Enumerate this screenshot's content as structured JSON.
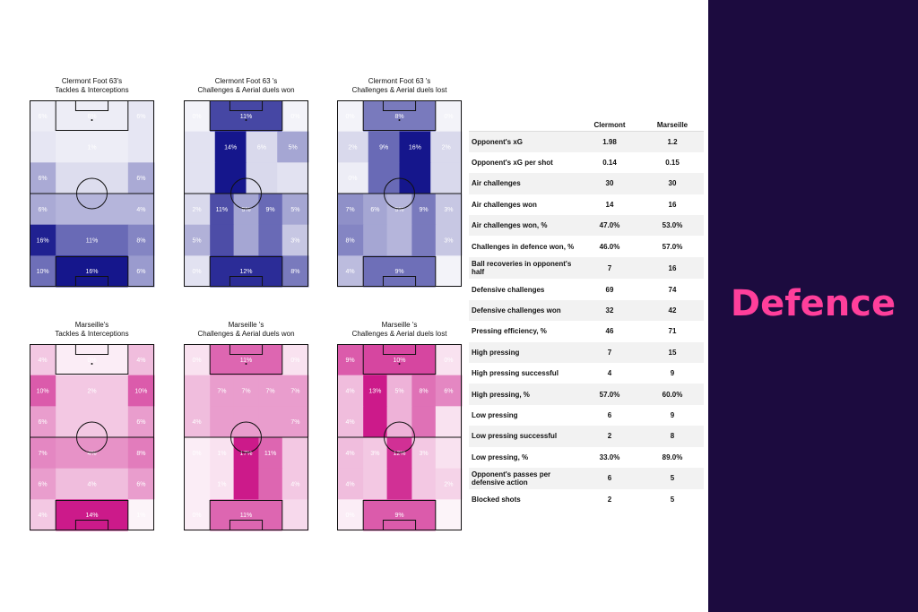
{
  "sidebar": {
    "title": "Defence",
    "bg": "#1c0b3f",
    "title_color": "#ff3f9b"
  },
  "palettes": {
    "clermont": "#15168c",
    "marseille": "#cc1a8a"
  },
  "chart_data": [
    {
      "type": "heatmap",
      "team": "clermont",
      "title": "Clermont Foot 63's\nTackles & Interceptions",
      "rows": [
        [
          {
            "v": 3,
            "t": "6%"
          },
          {
            "v": 3,
            "t": "6%"
          },
          {
            "v": 6,
            "t": "6%"
          }
        ],
        [
          {
            "v": 6,
            "t": ""
          },
          {
            "v": 3,
            "t": "1%"
          },
          {
            "v": 6,
            "t": ""
          }
        ],
        [
          {
            "v": 33,
            "t": "6%"
          },
          {
            "v": 10,
            "t": ""
          },
          {
            "v": 33,
            "t": "6%"
          }
        ],
        [
          {
            "v": 33,
            "t": "6%"
          },
          {
            "v": 28,
            "t": ""
          },
          {
            "v": 28,
            "t": "4%"
          }
        ],
        [
          {
            "v": 95,
            "t": "16%"
          },
          {
            "v": 62,
            "t": "11%"
          },
          {
            "v": 50,
            "t": "8%"
          }
        ],
        [
          {
            "v": 60,
            "t": "10%"
          },
          {
            "v": 100,
            "t": "16%"
          },
          {
            "v": 40,
            "t": "6%"
          }
        ]
      ]
    },
    {
      "type": "heatmap",
      "team": "clermont",
      "title": "Clermont Foot 63 's\nChallenges & Aerial duels won",
      "cols": [
        0.29,
        0.42,
        0.29
      ],
      "rows": [
        [
          {
            "v": 0,
            "t": "0%"
          },
          {
            "v": 78,
            "t": "11%"
          },
          {
            "v": 0,
            "t": "0%"
          }
        ],
        [
          {
            "v": 8,
            "t": ""
          },
          {
            "v": 100,
            "t": "14%"
          },
          {
            "v": 12,
            "t": "6%"
          },
          {
            "v": 35,
            "t": "5%"
          }
        ],
        [
          {
            "v": 8,
            "t": ""
          },
          {
            "v": 100,
            "t": ""
          },
          {
            "v": 12,
            "t": ""
          },
          {
            "v": 8,
            "t": ""
          }
        ],
        [
          {
            "v": 12,
            "t": "2%"
          },
          {
            "v": 75,
            "t": "11%"
          },
          {
            "v": 35,
            "t": "5%"
          },
          {
            "v": 62,
            "t": "9%"
          },
          {
            "v": 35,
            "t": "5%"
          }
        ],
        [
          {
            "v": 30,
            "t": "5%"
          },
          {
            "v": 75,
            "t": ""
          },
          {
            "v": 35,
            "t": ""
          },
          {
            "v": 62,
            "t": ""
          },
          {
            "v": 20,
            "t": "3%"
          }
        ],
        [
          {
            "v": 8,
            "t": "0%"
          },
          {
            "v": 90,
            "t": "12%"
          },
          {
            "v": 55,
            "t": "8%"
          }
        ]
      ]
    },
    {
      "type": "heatmap",
      "team": "clermont",
      "title": "Clermont Foot 63 's\nChallenges & Aerial duels lost",
      "rows": [
        [
          {
            "v": 0,
            "t": "0%"
          },
          {
            "v": 55,
            "t": "8%"
          },
          {
            "v": 0,
            "t": "0%"
          }
        ],
        [
          {
            "v": 12,
            "t": "2%"
          },
          {
            "v": 62,
            "t": "9%"
          },
          {
            "v": 100,
            "t": "16%"
          },
          {
            "v": 12,
            "t": "2%"
          }
        ],
        [
          {
            "v": 3,
            "t": "0%"
          },
          {
            "v": 62,
            "t": ""
          },
          {
            "v": 100,
            "t": ""
          },
          {
            "v": 12,
            "t": ""
          }
        ],
        [
          {
            "v": 45,
            "t": "7%"
          },
          {
            "v": 35,
            "t": "6%"
          },
          {
            "v": 28,
            "t": "5%"
          },
          {
            "v": 55,
            "t": "9%"
          },
          {
            "v": 20,
            "t": "3%"
          }
        ],
        [
          {
            "v": 50,
            "t": "8%"
          },
          {
            "v": 35,
            "t": ""
          },
          {
            "v": 28,
            "t": ""
          },
          {
            "v": 55,
            "t": ""
          },
          {
            "v": 20,
            "t": "3%"
          }
        ],
        [
          {
            "v": 25,
            "t": "4%"
          },
          {
            "v": 60,
            "t": "9%"
          },
          {
            "v": 0,
            "t": ""
          }
        ]
      ]
    },
    {
      "type": "heatmap",
      "team": "marseille",
      "title": "Marseille's\nTackles & Interceptions",
      "rows": [
        [
          {
            "v": 20,
            "t": "4%"
          },
          {
            "v": 3,
            "t": "0%"
          },
          {
            "v": 25,
            "t": "4%"
          }
        ],
        [
          {
            "v": 70,
            "t": "10%"
          },
          {
            "v": 20,
            "t": "2%"
          },
          {
            "v": 70,
            "t": "10%"
          }
        ],
        [
          {
            "v": 40,
            "t": "6%"
          },
          {
            "v": 20,
            "t": ""
          },
          {
            "v": 40,
            "t": "6%"
          }
        ],
        [
          {
            "v": 50,
            "t": "7%"
          },
          {
            "v": 45,
            "t": "4%"
          },
          {
            "v": 55,
            "t": "8%"
          }
        ],
        [
          {
            "v": 40,
            "t": "6%"
          },
          {
            "v": 25,
            "t": "4%"
          },
          {
            "v": 40,
            "t": "6%"
          }
        ],
        [
          {
            "v": 20,
            "t": "4%"
          },
          {
            "v": 100,
            "t": "14%"
          },
          {
            "v": 0,
            "t": "1%"
          }
        ]
      ]
    },
    {
      "type": "heatmap",
      "team": "marseille",
      "title": "Marseille 's\nChallenges & Aerial duels won",
      "cols": [
        0.29,
        0.42,
        0.29
      ],
      "rows": [
        [
          {
            "v": 8,
            "t": "0%"
          },
          {
            "v": 65,
            "t": "11%"
          },
          {
            "v": 8,
            "t": "0%"
          }
        ],
        [
          {
            "v": 25,
            "t": ""
          },
          {
            "v": 40,
            "t": "7%"
          },
          {
            "v": 40,
            "t": "7%"
          },
          {
            "v": 40,
            "t": "7%"
          },
          {
            "v": 40,
            "t": "7%"
          }
        ],
        [
          {
            "v": 25,
            "t": "4%"
          },
          {
            "v": 40,
            "t": ""
          },
          {
            "v": 40,
            "t": ""
          },
          {
            "v": 40,
            "t": ""
          },
          {
            "v": 40,
            "t": "7%"
          }
        ],
        [
          {
            "v": 3,
            "t": "0%"
          },
          {
            "v": 8,
            "t": "1%"
          },
          {
            "v": 100,
            "t": "17%"
          },
          {
            "v": 65,
            "t": "11%"
          },
          {
            "v": 20,
            "t": ""
          }
        ],
        [
          {
            "v": 3,
            "t": ""
          },
          {
            "v": 8,
            "t": "1%"
          },
          {
            "v": 100,
            "t": ""
          },
          {
            "v": 65,
            "t": ""
          },
          {
            "v": 20,
            "t": "4%"
          }
        ],
        [
          {
            "v": 3,
            "t": "0%"
          },
          {
            "v": 65,
            "t": "11%"
          },
          {
            "v": 12,
            "t": ""
          }
        ]
      ]
    },
    {
      "type": "heatmap",
      "team": "marseille",
      "title": "Marseille 's\nChallenges & Aerial duels lost",
      "rows": [
        [
          {
            "v": 70,
            "t": "9%"
          },
          {
            "v": 80,
            "t": "10%"
          },
          {
            "v": 8,
            "t": "0%"
          }
        ],
        [
          {
            "v": 25,
            "t": "4%"
          },
          {
            "v": 100,
            "t": "13%"
          },
          {
            "v": 30,
            "t": "5%"
          },
          {
            "v": 60,
            "t": "8%"
          },
          {
            "v": 50,
            "t": "6%"
          }
        ],
        [
          {
            "v": 25,
            "t": "4%"
          },
          {
            "v": 100,
            "t": ""
          },
          {
            "v": 30,
            "t": ""
          },
          {
            "v": 60,
            "t": ""
          },
          {
            "v": 8,
            "t": ""
          }
        ],
        [
          {
            "v": 25,
            "t": "4%"
          },
          {
            "v": 20,
            "t": "3%"
          },
          {
            "v": 90,
            "t": "12%"
          },
          {
            "v": 20,
            "t": "3%"
          },
          {
            "v": 8,
            "t": ""
          }
        ],
        [
          {
            "v": 25,
            "t": "4%"
          },
          {
            "v": 20,
            "t": ""
          },
          {
            "v": 90,
            "t": ""
          },
          {
            "v": 20,
            "t": ""
          },
          {
            "v": 15,
            "t": "2%"
          }
        ],
        [
          {
            "v": 3,
            "t": "0%"
          },
          {
            "v": 70,
            "t": "9%"
          },
          {
            "v": 0,
            "t": ""
          }
        ]
      ]
    },
    {
      "type": "table",
      "columns": [
        "Clermont",
        "Marseille"
      ],
      "rows": [
        {
          "label": "Opponent's xG",
          "values": [
            "1.98",
            "1.2"
          ]
        },
        {
          "label": "Opponent's xG per shot",
          "values": [
            "0.14",
            "0.15"
          ]
        },
        {
          "label": "Air challenges",
          "values": [
            "30",
            "30"
          ]
        },
        {
          "label": "Air challenges won",
          "values": [
            "14",
            "16"
          ]
        },
        {
          "label": "Air challenges won, %",
          "values": [
            "47.0%",
            "53.0%"
          ]
        },
        {
          "label": "Challenges in defence won, %",
          "values": [
            "46.0%",
            "57.0%"
          ]
        },
        {
          "label": "Ball recoveries in opponent's half",
          "values": [
            "7",
            "16"
          ]
        },
        {
          "label": "Defensive challenges",
          "values": [
            "69",
            "74"
          ]
        },
        {
          "label": "Defensive challenges won",
          "values": [
            "32",
            "42"
          ]
        },
        {
          "label": "Pressing efficiency, %",
          "values": [
            "46",
            "71"
          ]
        },
        {
          "label": "High pressing",
          "values": [
            "7",
            "15"
          ]
        },
        {
          "label": "High pressing successful",
          "values": [
            "4",
            "9"
          ]
        },
        {
          "label": "High pressing, %",
          "values": [
            "57.0%",
            "60.0%"
          ]
        },
        {
          "label": "Low pressing",
          "values": [
            "6",
            "9"
          ]
        },
        {
          "label": "Low pressing successful",
          "values": [
            "2",
            "8"
          ]
        },
        {
          "label": "Low pressing, %",
          "values": [
            "33.0%",
            "89.0%"
          ]
        },
        {
          "label": "Opponent's passes per defensive action",
          "values": [
            "6",
            "5"
          ]
        },
        {
          "label": "Blocked shots",
          "values": [
            "2",
            "5"
          ]
        }
      ]
    }
  ]
}
